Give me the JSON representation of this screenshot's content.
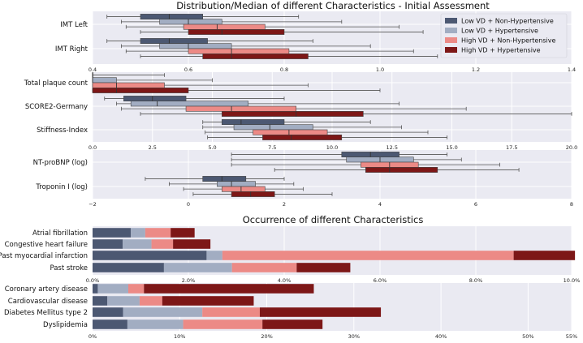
{
  "colors": {
    "panel_bg": "#eaeaf2",
    "grid": "#ffffff",
    "low_vd_non_ht": "#4c5872",
    "low_vd_ht": "#a2adc2",
    "high_vd_non_ht": "#ec8a86",
    "high_vd_ht": "#7d1717",
    "whisker": "#555555"
  },
  "chart_data": [
    {
      "type": "boxplot",
      "title": "Distribution/Median of different Characteristics - Initial Assessment",
      "legend_position": "top-right",
      "legend": [
        "Low VD + Non-Hypertensive",
        "Low VD + Hypertensive",
        "High VD + Non-Hypertensive",
        "High VD + Hypertensive"
      ],
      "grid": true,
      "panels": [
        {
          "xlim": [
            0.4,
            1.4
          ],
          "ticks": [
            "0.4",
            "0.6",
            "0.8",
            "1.0",
            "1.2",
            "1.4"
          ],
          "tick_values": [
            0.4,
            0.6,
            0.8,
            1.0,
            1.2,
            1.4
          ],
          "categories": [
            {
              "label": "IMT Left",
              "boxes": [
                {
                  "series": "Low VD + Non-Hypertensive",
                  "whislo": 0.43,
                  "q1": 0.5,
                  "med": 0.56,
                  "q3": 0.63,
                  "whishi": 0.83
                },
                {
                  "series": "Low VD + Hypertensive",
                  "whislo": 0.46,
                  "q1": 0.54,
                  "med": 0.6,
                  "q3": 0.67,
                  "whishi": 0.92
                },
                {
                  "series": "High VD + Non-Hypertensive",
                  "whislo": 0.47,
                  "q1": 0.59,
                  "med": 0.66,
                  "q3": 0.76,
                  "whishi": 1.04
                },
                {
                  "series": "High VD + Hypertensive",
                  "whislo": 0.5,
                  "q1": 0.6,
                  "med": 0.67,
                  "q3": 0.8,
                  "whishi": 1.09
                }
              ]
            },
            {
              "label": "IMT Right",
              "boxes": [
                {
                  "series": "Low VD + Non-Hypertensive",
                  "whislo": 0.43,
                  "q1": 0.5,
                  "med": 0.56,
                  "q3": 0.64,
                  "whishi": 0.86
                },
                {
                  "series": "Low VD + Hypertensive",
                  "whislo": 0.46,
                  "q1": 0.54,
                  "med": 0.6,
                  "q3": 0.69,
                  "whishi": 0.98
                },
                {
                  "series": "High VD + Non-Hypertensive",
                  "whislo": 0.47,
                  "q1": 0.6,
                  "med": 0.69,
                  "q3": 0.81,
                  "whishi": 1.07
                },
                {
                  "series": "High VD + Hypertensive",
                  "whislo": 0.5,
                  "q1": 0.63,
                  "med": 0.69,
                  "q3": 0.85,
                  "whishi": 1.12
                }
              ]
            }
          ]
        },
        {
          "xlim": [
            0.0,
            20.0
          ],
          "ticks": [
            "0.0",
            "2.5",
            "5.0",
            "7.5",
            "10.0",
            "12.5",
            "15.0",
            "17.5",
            "20.0"
          ],
          "tick_values": [
            0,
            2.5,
            5,
            7.5,
            10,
            12.5,
            15,
            17.5,
            20
          ],
          "categories": [
            {
              "label": "Total plaque count",
              "boxes": [
                {
                  "series": "Low VD + Non-Hypertensive",
                  "whislo": 0,
                  "q1": 0,
                  "med": 0,
                  "q3": 0,
                  "whishi": 3
                },
                {
                  "series": "Low VD + Hypertensive",
                  "whislo": 0,
                  "q1": 0,
                  "med": 0,
                  "q3": 1,
                  "whishi": 5
                },
                {
                  "series": "High VD + Non-Hypertensive",
                  "whislo": 0,
                  "q1": 0,
                  "med": 1,
                  "q3": 3,
                  "whishi": 9
                },
                {
                  "series": "High VD + Hypertensive",
                  "whislo": 0,
                  "q1": 0,
                  "med": 1,
                  "q3": 4,
                  "whishi": 12
                }
              ]
            },
            {
              "label": "SCORE2-Germany",
              "boxes": [
                {
                  "series": "Low VD + Non-Hypertensive",
                  "whislo": 0.5,
                  "q1": 1.3,
                  "med": 2.5,
                  "q3": 3.9,
                  "whishi": 8.0
                },
                {
                  "series": "Low VD + Hypertensive",
                  "whislo": 1.0,
                  "q1": 1.6,
                  "med": 2.7,
                  "q3": 6.5,
                  "whishi": 12.8
                },
                {
                  "series": "High VD + Non-Hypertensive",
                  "whislo": 1.2,
                  "q1": 3.9,
                  "med": 5.8,
                  "q3": 8.5,
                  "whishi": 15.6
                },
                {
                  "series": "High VD + Hypertensive",
                  "whislo": 2.0,
                  "q1": 5.4,
                  "med": 8.5,
                  "q3": 11.3,
                  "whishi": 20.0
                }
              ]
            },
            {
              "label": "Stiffness-Index",
              "boxes": [
                {
                  "series": "Low VD + Non-Hypertensive",
                  "whislo": 4.6,
                  "q1": 5.4,
                  "med": 6.2,
                  "q3": 8.0,
                  "whishi": 11.6
                },
                {
                  "series": "Low VD + Hypertensive",
                  "whislo": 4.6,
                  "q1": 5.9,
                  "med": 7.4,
                  "q3": 9.2,
                  "whishi": 12.9
                },
                {
                  "series": "High VD + Non-Hypertensive",
                  "whislo": 4.7,
                  "q1": 6.7,
                  "med": 8.2,
                  "q3": 9.8,
                  "whishi": 14.0
                },
                {
                  "series": "High VD + Hypertensive",
                  "whislo": 4.8,
                  "q1": 7.1,
                  "med": 8.3,
                  "q3": 10.4,
                  "whishi": 14.8
                }
              ]
            }
          ]
        },
        {
          "xlim": [
            -2,
            8
          ],
          "ticks": [
            "−2",
            "0",
            "2",
            "4",
            "6",
            "8"
          ],
          "tick_values": [
            -2,
            0,
            2,
            4,
            6,
            8
          ],
          "categories": [
            {
              "label": "NT-proBNP (log)",
              "boxes": [
                {
                  "series": "Low VD + Non-Hypertensive",
                  "whislo": 0.9,
                  "q1": 3.2,
                  "med": 3.8,
                  "q3": 4.4,
                  "whishi": 5.4
                },
                {
                  "series": "Low VD + Hypertensive",
                  "whislo": 0.9,
                  "q1": 3.3,
                  "med": 4.0,
                  "q3": 4.7,
                  "whishi": 5.7
                },
                {
                  "series": "High VD + Non-Hypertensive",
                  "whislo": 0.9,
                  "q1": 3.6,
                  "med": 4.2,
                  "q3": 4.8,
                  "whishi": 6.5
                },
                {
                  "series": "High VD + Hypertensive",
                  "whislo": 1.8,
                  "q1": 3.7,
                  "med": 4.2,
                  "q3": 5.2,
                  "whishi": 6.9
                }
              ]
            },
            {
              "label": "Troponin I (log)",
              "boxes": [
                {
                  "series": "Low VD + Non-Hypertensive",
                  "whislo": -0.9,
                  "q1": 0.3,
                  "med": 0.7,
                  "q3": 1.2,
                  "whishi": 2.0
                },
                {
                  "series": "Low VD + Hypertensive",
                  "whislo": -0.4,
                  "q1": 0.6,
                  "med": 0.9,
                  "q3": 1.4,
                  "whishi": 2.2
                },
                {
                  "series": "High VD + Non-Hypertensive",
                  "whislo": -0.1,
                  "q1": 0.7,
                  "med": 1.1,
                  "q3": 1.6,
                  "whishi": 2.4
                },
                {
                  "series": "High VD + Hypertensive",
                  "whislo": 0.1,
                  "q1": 0.9,
                  "med": 1.3,
                  "q3": 1.8,
                  "whishi": 3.0
                }
              ]
            }
          ]
        }
      ]
    },
    {
      "type": "stacked-bar-horizontal",
      "title": "Occurrence of different Characteristics",
      "grid": true,
      "series_names": [
        "Low VD + Non-Hypertensive",
        "Low VD + Hypertensive",
        "High VD + Non-Hypertensive",
        "High VD + Hypertensive"
      ],
      "panels": [
        {
          "xlim": [
            0,
            10
          ],
          "ticks": [
            "0.0%",
            "2.0%",
            "4.0%",
            "6.0%",
            "8.0%",
            "10.0%"
          ],
          "tick_values": [
            0,
            2,
            4,
            6,
            8,
            10
          ],
          "categories": [
            "Atrial fibrillation",
            "Congestive heart failure",
            "Past myocardial infarction",
            "Past stroke"
          ],
          "values": [
            [
              0.8,
              0.63,
              2.38,
              1.49
            ],
            [
              0.3,
              0.6,
              0.33,
              1.42
            ],
            [
              0.53,
              0.45,
              6.08,
              1.35
            ],
            [
              0.5,
              0.78,
              1.28,
              1.12
            ]
          ]
        },
        {
          "xlim": [
            0,
            55
          ],
          "ticks": [
            "0%",
            "10%",
            "20%",
            "30%",
            "40%",
            "50%",
            "55%"
          ],
          "tick_values": [
            0,
            10,
            20,
            30,
            40,
            50,
            55
          ],
          "categories": [
            "Coronary artery disease",
            "Cardiovascular disease",
            "Diabetes Mellitus type 2",
            "Dyslipidemia"
          ],
          "values": [
            [
              0.6,
              1.7,
              3.5,
              4.0
            ],
            [
              3.5,
              3.7,
              9.1,
              6.4
            ],
            [
              1.8,
              2.6,
              6.6,
              9.1
            ],
            [
              19.5,
              10.5,
              13.9,
              6.9
            ]
          ]
        }
      ]
    }
  ]
}
